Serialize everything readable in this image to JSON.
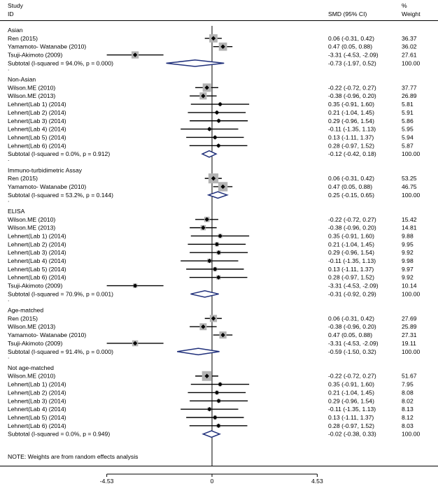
{
  "chart_data": {
    "type": "forest",
    "header": {
      "study": "Study",
      "id": "ID",
      "smd": "SMD (95% CI)",
      "pct": "%",
      "weight": "Weight"
    },
    "note": "NOTE: Weights are from random effects analysis",
    "xaxis": {
      "ticks": [
        "-4.53",
        "0",
        "4.53"
      ],
      "range": [
        -4.53,
        4.53
      ]
    },
    "groups": [
      {
        "name": "Asian",
        "studies": [
          {
            "label": "Ren  (2015)",
            "est": 0.06,
            "lo": -0.31,
            "hi": 0.42,
            "ci": "0.06 (-0.31, 0.42)",
            "weight": "36.37"
          },
          {
            "label": "Yamamoto- Watanabe (2010)",
            "est": 0.47,
            "lo": 0.05,
            "hi": 0.88,
            "ci": "0.47 (0.05, 0.88)",
            "weight": "36.02"
          },
          {
            "label": "Tsuji-Akimoto (2009)",
            "est": -3.31,
            "lo": -4.53,
            "hi": -2.09,
            "ci": "-3.31 (-4.53, -2.09)",
            "weight": "27.61"
          }
        ],
        "subtotal": {
          "label": "Subtotal  (I-squared = 94.0%, p = 0.000)",
          "est": -0.73,
          "lo": -1.97,
          "hi": 0.52,
          "ci": "-0.73 (-1.97, 0.52)",
          "weight": "100.00"
        }
      },
      {
        "name": "Non-Asian",
        "studies": [
          {
            "label": "Wilson.ME (2010)",
            "est": -0.22,
            "lo": -0.72,
            "hi": 0.27,
            "ci": "-0.22 (-0.72, 0.27)",
            "weight": "37.77"
          },
          {
            "label": "Wilson.ME (2013)",
            "est": -0.38,
            "lo": -0.96,
            "hi": 0.2,
            "ci": "-0.38 (-0.96, 0.20)",
            "weight": "26.89"
          },
          {
            "label": "Lehnert(Lab 1) (2014)",
            "est": 0.35,
            "lo": -0.91,
            "hi": 1.6,
            "ci": "0.35 (-0.91, 1.60)",
            "weight": "5.81"
          },
          {
            "label": "Lehnert(Lab 2) (2014)",
            "est": 0.21,
            "lo": -1.04,
            "hi": 1.45,
            "ci": "0.21 (-1.04, 1.45)",
            "weight": "5.91"
          },
          {
            "label": "Lehnert(Lab 3) (2014)",
            "est": 0.29,
            "lo": -0.96,
            "hi": 1.54,
            "ci": "0.29 (-0.96, 1.54)",
            "weight": "5.86"
          },
          {
            "label": "Lehnert(Lab 4) (2014)",
            "est": -0.11,
            "lo": -1.35,
            "hi": 1.13,
            "ci": "-0.11 (-1.35, 1.13)",
            "weight": "5.95"
          },
          {
            "label": "Lehnert(Lab 5) (2014)",
            "est": 0.13,
            "lo": -1.11,
            "hi": 1.37,
            "ci": "0.13 (-1.11, 1.37)",
            "weight": "5.94"
          },
          {
            "label": "Lehnert(Lab 6) (2014)",
            "est": 0.28,
            "lo": -0.97,
            "hi": 1.52,
            "ci": "0.28 (-0.97, 1.52)",
            "weight": "5.87"
          }
        ],
        "subtotal": {
          "label": "Subtotal  (I-squared = 0.0%, p = 0.912)",
          "est": -0.12,
          "lo": -0.42,
          "hi": 0.18,
          "ci": "-0.12 (-0.42, 0.18)",
          "weight": "100.00"
        }
      },
      {
        "name": "Immuno-turbidimetric Assay",
        "studies": [
          {
            "label": "Ren  (2015)",
            "est": 0.06,
            "lo": -0.31,
            "hi": 0.42,
            "ci": "0.06 (-0.31, 0.42)",
            "weight": "53.25"
          },
          {
            "label": "Yamamoto- Watanabe (2010)",
            "est": 0.47,
            "lo": 0.05,
            "hi": 0.88,
            "ci": "0.47 (0.05, 0.88)",
            "weight": "46.75"
          }
        ],
        "subtotal": {
          "label": "Subtotal  (I-squared = 53.2%, p = 0.144)",
          "est": 0.25,
          "lo": -0.15,
          "hi": 0.65,
          "ci": "0.25 (-0.15, 0.65)",
          "weight": "100.00"
        }
      },
      {
        "name": "ELISA",
        "studies": [
          {
            "label": "Wilson.ME (2010)",
            "est": -0.22,
            "lo": -0.72,
            "hi": 0.27,
            "ci": "-0.22 (-0.72, 0.27)",
            "weight": "15.42"
          },
          {
            "label": "Wilson.ME (2013)",
            "est": -0.38,
            "lo": -0.96,
            "hi": 0.2,
            "ci": "-0.38 (-0.96, 0.20)",
            "weight": "14.81"
          },
          {
            "label": "Lehnert(Lab 1) (2014)",
            "est": 0.35,
            "lo": -0.91,
            "hi": 1.6,
            "ci": "0.35 (-0.91, 1.60)",
            "weight": "9.88"
          },
          {
            "label": "Lehnert(Lab 2) (2014)",
            "est": 0.21,
            "lo": -1.04,
            "hi": 1.45,
            "ci": "0.21 (-1.04, 1.45)",
            "weight": "9.95"
          },
          {
            "label": "Lehnert(Lab 3) (2014)",
            "est": 0.29,
            "lo": -0.96,
            "hi": 1.54,
            "ci": "0.29 (-0.96, 1.54)",
            "weight": "9.92"
          },
          {
            "label": "Lehnert(Lab 4) (2014)",
            "est": -0.11,
            "lo": -1.35,
            "hi": 1.13,
            "ci": "-0.11 (-1.35, 1.13)",
            "weight": "9.98"
          },
          {
            "label": "Lehnert(Lab 5) (2014)",
            "est": 0.13,
            "lo": -1.11,
            "hi": 1.37,
            "ci": "0.13 (-1.11, 1.37)",
            "weight": "9.97"
          },
          {
            "label": "Lehnert(Lab 6) (2014)",
            "est": 0.28,
            "lo": -0.97,
            "hi": 1.52,
            "ci": "0.28 (-0.97, 1.52)",
            "weight": "9.92"
          },
          {
            "label": "Tsuji-Akimoto (2009)",
            "est": -3.31,
            "lo": -4.53,
            "hi": -2.09,
            "ci": "-3.31 (-4.53, -2.09)",
            "weight": "10.14"
          }
        ],
        "subtotal": {
          "label": "Subtotal  (I-squared = 70.9%, p = 0.001)",
          "est": -0.31,
          "lo": -0.92,
          "hi": 0.29,
          "ci": "-0.31 (-0.92, 0.29)",
          "weight": "100.00"
        }
      },
      {
        "name": "Age-matched",
        "studies": [
          {
            "label": "Ren  (2015)",
            "est": 0.06,
            "lo": -0.31,
            "hi": 0.42,
            "ci": "0.06 (-0.31, 0.42)",
            "weight": "27.69"
          },
          {
            "label": "Wilson.ME (2013)",
            "est": -0.38,
            "lo": -0.96,
            "hi": 0.2,
            "ci": "-0.38 (-0.96, 0.20)",
            "weight": "25.89"
          },
          {
            "label": "Yamamoto- Watanabe (2010)",
            "est": 0.47,
            "lo": 0.05,
            "hi": 0.88,
            "ci": "0.47 (0.05, 0.88)",
            "weight": "27.31"
          },
          {
            "label": "Tsuji-Akimoto (2009)",
            "est": -3.31,
            "lo": -4.53,
            "hi": -2.09,
            "ci": "-3.31 (-4.53, -2.09)",
            "weight": "19.11"
          }
        ],
        "subtotal": {
          "label": "Subtotal  (I-squared = 91.4%, p = 0.000)",
          "est": -0.59,
          "lo": -1.5,
          "hi": 0.32,
          "ci": "-0.59 (-1.50, 0.32)",
          "weight": "100.00"
        }
      },
      {
        "name": "Not age-matched",
        "studies": [
          {
            "label": "Wilson.ME (2010)",
            "est": -0.22,
            "lo": -0.72,
            "hi": 0.27,
            "ci": "-0.22 (-0.72, 0.27)",
            "weight": "51.67"
          },
          {
            "label": "Lehnert(Lab 1) (2014)",
            "est": 0.35,
            "lo": -0.91,
            "hi": 1.6,
            "ci": "0.35 (-0.91, 1.60)",
            "weight": "7.95"
          },
          {
            "label": "Lehnert(Lab 2) (2014)",
            "est": 0.21,
            "lo": -1.04,
            "hi": 1.45,
            "ci": "0.21 (-1.04, 1.45)",
            "weight": "8.08"
          },
          {
            "label": "Lehnert(Lab 3) (2014)",
            "est": 0.29,
            "lo": -0.96,
            "hi": 1.54,
            "ci": "0.29 (-0.96, 1.54)",
            "weight": "8.02"
          },
          {
            "label": "Lehnert(Lab 4) (2014)",
            "est": -0.11,
            "lo": -1.35,
            "hi": 1.13,
            "ci": "-0.11 (-1.35, 1.13)",
            "weight": "8.13"
          },
          {
            "label": "Lehnert(Lab 5) (2014)",
            "est": 0.13,
            "lo": -1.11,
            "hi": 1.37,
            "ci": "0.13 (-1.11, 1.37)",
            "weight": "8.12"
          },
          {
            "label": "Lehnert(Lab 6) (2014)",
            "est": 0.28,
            "lo": -0.97,
            "hi": 1.52,
            "ci": "0.28 (-0.97, 1.52)",
            "weight": "8.03"
          }
        ],
        "subtotal": {
          "label": "Subtotal  (I-squared = 0.0%, p = 0.949)",
          "est": -0.02,
          "lo": -0.38,
          "hi": 0.33,
          "ci": "-0.02 (-0.38, 0.33)",
          "weight": "100.00"
        }
      }
    ]
  }
}
